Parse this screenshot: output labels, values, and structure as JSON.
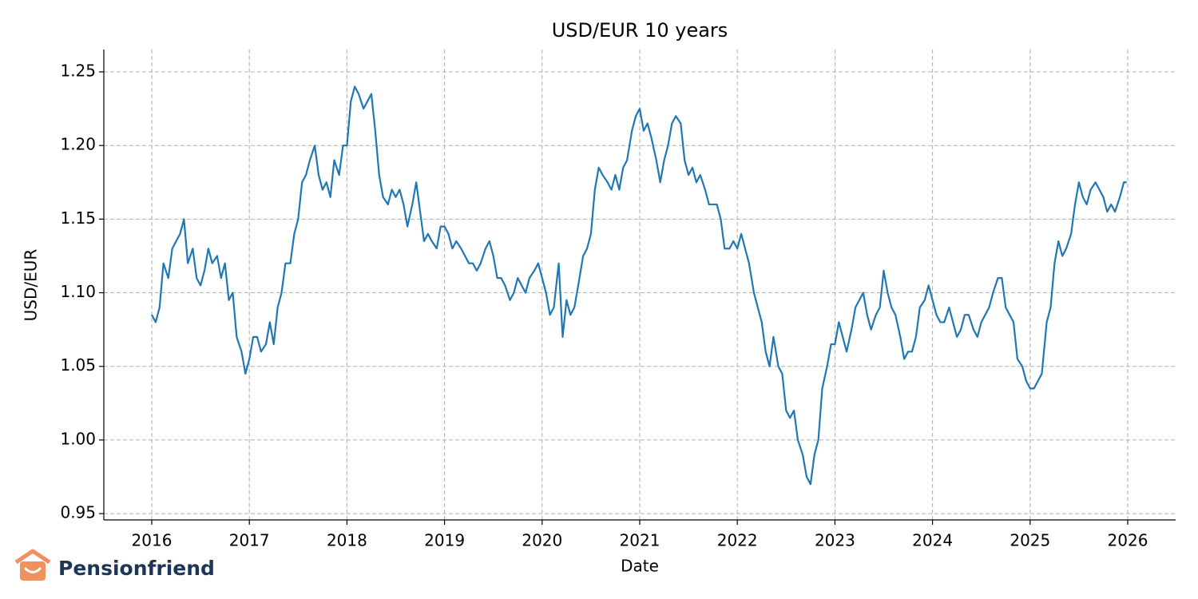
{
  "chart_data": {
    "type": "line",
    "title": "USD/EUR 10 years",
    "x_label": "Date",
    "y_label": "USD/EUR",
    "color": "#1f77b4",
    "grid": true,
    "x": [
      2016.0,
      2016.04,
      2016.08,
      2016.12,
      2016.17,
      2016.21,
      2016.25,
      2016.29,
      2016.33,
      2016.37,
      2016.42,
      2016.46,
      2016.5,
      2016.54,
      2016.58,
      2016.62,
      2016.67,
      2016.71,
      2016.75,
      2016.79,
      2016.83,
      2016.87,
      2016.92,
      2016.96,
      2017.0,
      2017.04,
      2017.08,
      2017.12,
      2017.17,
      2017.21,
      2017.25,
      2017.29,
      2017.33,
      2017.37,
      2017.42,
      2017.46,
      2017.5,
      2017.54,
      2017.58,
      2017.62,
      2017.67,
      2017.71,
      2017.75,
      2017.79,
      2017.83,
      2017.87,
      2017.92,
      2017.96,
      2018.0,
      2018.04,
      2018.08,
      2018.12,
      2018.17,
      2018.21,
      2018.25,
      2018.29,
      2018.33,
      2018.37,
      2018.42,
      2018.46,
      2018.5,
      2018.54,
      2018.58,
      2018.62,
      2018.67,
      2018.71,
      2018.75,
      2018.79,
      2018.83,
      2018.87,
      2018.92,
      2018.96,
      2019.0,
      2019.04,
      2019.08,
      2019.12,
      2019.17,
      2019.21,
      2019.25,
      2019.29,
      2019.33,
      2019.37,
      2019.42,
      2019.46,
      2019.5,
      2019.54,
      2019.58,
      2019.62,
      2019.67,
      2019.71,
      2019.75,
      2019.79,
      2019.83,
      2019.87,
      2019.92,
      2019.96,
      2020.0,
      2020.04,
      2020.08,
      2020.12,
      2020.17,
      2020.21,
      2020.25,
      2020.29,
      2020.33,
      2020.37,
      2020.42,
      2020.46,
      2020.5,
      2020.54,
      2020.58,
      2020.62,
      2020.67,
      2020.71,
      2020.75,
      2020.79,
      2020.83,
      2020.87,
      2020.92,
      2020.96,
      2021.0,
      2021.04,
      2021.08,
      2021.12,
      2021.17,
      2021.21,
      2021.25,
      2021.29,
      2021.33,
      2021.37,
      2021.42,
      2021.46,
      2021.5,
      2021.54,
      2021.58,
      2021.62,
      2021.67,
      2021.71,
      2021.75,
      2021.79,
      2021.83,
      2021.87,
      2021.92,
      2021.96,
      2022.0,
      2022.04,
      2022.08,
      2022.12,
      2022.17,
      2022.21,
      2022.25,
      2022.29,
      2022.33,
      2022.37,
      2022.42,
      2022.46,
      2022.5,
      2022.54,
      2022.58,
      2022.62,
      2022.67,
      2022.71,
      2022.75,
      2022.79,
      2022.83,
      2022.87,
      2022.92,
      2022.96,
      2023.0,
      2023.04,
      2023.08,
      2023.12,
      2023.17,
      2023.21,
      2023.25,
      2023.29,
      2023.33,
      2023.37,
      2023.42,
      2023.46,
      2023.5,
      2023.54,
      2023.58,
      2023.62,
      2023.67,
      2023.71,
      2023.75,
      2023.79,
      2023.83,
      2023.87,
      2023.92,
      2023.96,
      2024.0,
      2024.04,
      2024.08,
      2024.12,
      2024.17,
      2024.21,
      2024.25,
      2024.29,
      2024.33,
      2024.37,
      2024.42,
      2024.46,
      2024.5,
      2024.54,
      2024.58,
      2024.62,
      2024.67,
      2024.71,
      2024.75,
      2024.79,
      2024.83,
      2024.87,
      2024.92,
      2024.96,
      2025.0,
      2025.04,
      2025.08,
      2025.12,
      2025.17,
      2025.21,
      2025.25,
      2025.29,
      2025.33,
      2025.37,
      2025.42,
      2025.46,
      2025.5,
      2025.54,
      2025.58,
      2025.62,
      2025.67,
      2025.71,
      2025.75,
      2025.79,
      2025.83,
      2025.87,
      2025.92,
      2025.96,
      2025.99
    ],
    "values": [
      1.085,
      1.08,
      1.09,
      1.12,
      1.11,
      1.13,
      1.135,
      1.14,
      1.15,
      1.12,
      1.13,
      1.11,
      1.105,
      1.115,
      1.13,
      1.12,
      1.125,
      1.11,
      1.12,
      1.095,
      1.1,
      1.07,
      1.06,
      1.045,
      1.055,
      1.07,
      1.07,
      1.06,
      1.065,
      1.08,
      1.065,
      1.09,
      1.1,
      1.12,
      1.12,
      1.14,
      1.15,
      1.175,
      1.18,
      1.19,
      1.2,
      1.18,
      1.17,
      1.175,
      1.165,
      1.19,
      1.18,
      1.2,
      1.2,
      1.23,
      1.24,
      1.235,
      1.225,
      1.23,
      1.235,
      1.21,
      1.18,
      1.165,
      1.16,
      1.17,
      1.165,
      1.17,
      1.16,
      1.145,
      1.16,
      1.175,
      1.155,
      1.135,
      1.14,
      1.135,
      1.13,
      1.145,
      1.145,
      1.14,
      1.13,
      1.135,
      1.13,
      1.125,
      1.12,
      1.12,
      1.115,
      1.12,
      1.13,
      1.135,
      1.125,
      1.11,
      1.11,
      1.105,
      1.095,
      1.1,
      1.11,
      1.105,
      1.1,
      1.11,
      1.115,
      1.12,
      1.11,
      1.1,
      1.085,
      1.09,
      1.12,
      1.07,
      1.095,
      1.085,
      1.09,
      1.105,
      1.125,
      1.13,
      1.14,
      1.17,
      1.185,
      1.18,
      1.175,
      1.17,
      1.18,
      1.17,
      1.185,
      1.19,
      1.21,
      1.22,
      1.225,
      1.21,
      1.215,
      1.205,
      1.19,
      1.175,
      1.19,
      1.2,
      1.215,
      1.22,
      1.215,
      1.19,
      1.18,
      1.185,
      1.175,
      1.18,
      1.17,
      1.16,
      1.16,
      1.16,
      1.15,
      1.13,
      1.13,
      1.135,
      1.13,
      1.14,
      1.13,
      1.12,
      1.1,
      1.09,
      1.08,
      1.06,
      1.05,
      1.07,
      1.05,
      1.045,
      1.02,
      1.015,
      1.02,
      1.0,
      0.99,
      0.975,
      0.97,
      0.99,
      1.0,
      1.035,
      1.05,
      1.065,
      1.065,
      1.08,
      1.07,
      1.06,
      1.075,
      1.09,
      1.095,
      1.1,
      1.085,
      1.075,
      1.085,
      1.09,
      1.115,
      1.1,
      1.09,
      1.085,
      1.07,
      1.055,
      1.06,
      1.06,
      1.07,
      1.09,
      1.095,
      1.105,
      1.095,
      1.085,
      1.08,
      1.08,
      1.09,
      1.08,
      1.07,
      1.075,
      1.085,
      1.085,
      1.075,
      1.07,
      1.08,
      1.085,
      1.09,
      1.1,
      1.11,
      1.11,
      1.09,
      1.085,
      1.08,
      1.055,
      1.05,
      1.04,
      1.035,
      1.035,
      1.04,
      1.045,
      1.08,
      1.09,
      1.12,
      1.135,
      1.125,
      1.13,
      1.14,
      1.16,
      1.175,
      1.165,
      1.16,
      1.17,
      1.175,
      1.17,
      1.165,
      1.155,
      1.16,
      1.155,
      1.165,
      1.175,
      1.175
    ],
    "xlim": [
      2015.509,
      2026.491
    ],
    "xticks": [
      2016,
      2017,
      2018,
      2019,
      2020,
      2021,
      2022,
      2023,
      2024,
      2025,
      2026
    ],
    "ylim": [
      0.9457,
      1.2652
    ],
    "yticks": [
      0.95,
      {
        "value": 1,
        "label": "1.00"
      },
      1.05,
      {
        "value": 1.1,
        "label": "1.10"
      },
      1.15,
      {
        "value": 1.2,
        "label": "1.20"
      },
      1.25
    ]
  },
  "logo_text": "Pensionfriend"
}
